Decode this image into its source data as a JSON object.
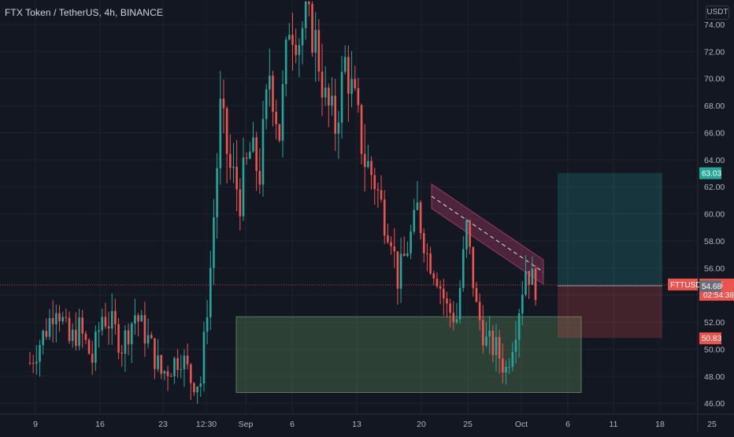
{
  "header": {
    "title": "FTX Token / TetherUS, 4h, BINANCE",
    "currency_label": "USDT"
  },
  "colors": {
    "background": "#131722",
    "grid": "#1f2330",
    "text": "#b2b5be",
    "up": "#26a69a",
    "down": "#ef5350",
    "support_zone": "rgba(104,160,104,0.30)",
    "profit_zone": "rgba(38,166,154,0.22)",
    "loss_zone": "rgba(239,83,80,0.22)",
    "channel": "rgba(183,60,110,0.35)"
  },
  "chart_data": {
    "type": "candlestick",
    "symbol": "FTTUSDT",
    "title": "FTX Token / TetherUS, 4h, BINANCE",
    "ylim": [
      45.2,
      75.8
    ],
    "y_ticks": [
      46,
      48,
      50,
      52,
      54,
      56,
      58,
      60,
      62,
      64,
      66,
      68,
      70,
      72,
      74
    ],
    "x_labels": [
      "9",
      "16",
      "23",
      "12:30",
      "Sep",
      "6",
      "13",
      "20",
      "25",
      "Oct",
      "6",
      "11",
      "18",
      "25"
    ],
    "grid": true,
    "close_path": [
      [
        0,
        49.0
      ],
      [
        5,
        51.5
      ],
      [
        8,
        53.5
      ],
      [
        12,
        50.5
      ],
      [
        15,
        51.5
      ],
      [
        19,
        49.2
      ],
      [
        22,
        52.5
      ],
      [
        25,
        51.8
      ],
      [
        28,
        50.3
      ],
      [
        32,
        52.6
      ],
      [
        36,
        50.7
      ],
      [
        40,
        48.2
      ],
      [
        43,
        48.8
      ],
      [
        46,
        49.6
      ],
      [
        49,
        47.8
      ],
      [
        52,
        47.6
      ],
      [
        55,
        56.0
      ],
      [
        58,
        67.5
      ],
      [
        61,
        63.2
      ],
      [
        64,
        61.4
      ],
      [
        67,
        64.5
      ],
      [
        70,
        63.1
      ],
      [
        73,
        70.5
      ],
      [
        76,
        66.0
      ],
      [
        79,
        74.2
      ],
      [
        82,
        73.0
      ],
      [
        84,
        74.5
      ],
      [
        87,
        72.8
      ],
      [
        90,
        68.3
      ],
      [
        93,
        66.5
      ],
      [
        96,
        71.2
      ],
      [
        99,
        68.0
      ],
      [
        102,
        64.0
      ],
      [
        105,
        62.5
      ],
      [
        108,
        59.5
      ],
      [
        110,
        58.5
      ],
      [
        112,
        55.2
      ],
      [
        115,
        57.5
      ],
      [
        118,
        60.2
      ],
      [
        121,
        57.0
      ],
      [
        124,
        55.5
      ],
      [
        127,
        53.0
      ],
      [
        130,
        52.3
      ],
      [
        133,
        59.0
      ],
      [
        136,
        53.0
      ],
      [
        139,
        50.5
      ],
      [
        142,
        50.0
      ],
      [
        145,
        48.5
      ],
      [
        148,
        51.8
      ],
      [
        151,
        56.0
      ],
      [
        154,
        54.7
      ]
    ],
    "last_price": 54.75,
    "countdown": "02:54:38",
    "symbol_badge": "FTTUSDT",
    "price_markers": [
      {
        "label": "63.03",
        "value": 63.03,
        "color": "#26a69a"
      },
      {
        "label": "54.68",
        "value": 54.68,
        "color": "#6a6d78"
      },
      {
        "label": "50.83",
        "value": 50.83,
        "color": "#ef5350"
      }
    ],
    "drawings": {
      "support_zone": {
        "y_low": 46.8,
        "y_high": 52.4
      },
      "descending_channel": {
        "start_price": 61.3,
        "end_price": 55.7,
        "width_price": 0.9
      },
      "long_position": {
        "entry": 54.68,
        "target": 63.03,
        "stop": 50.83
      }
    }
  }
}
